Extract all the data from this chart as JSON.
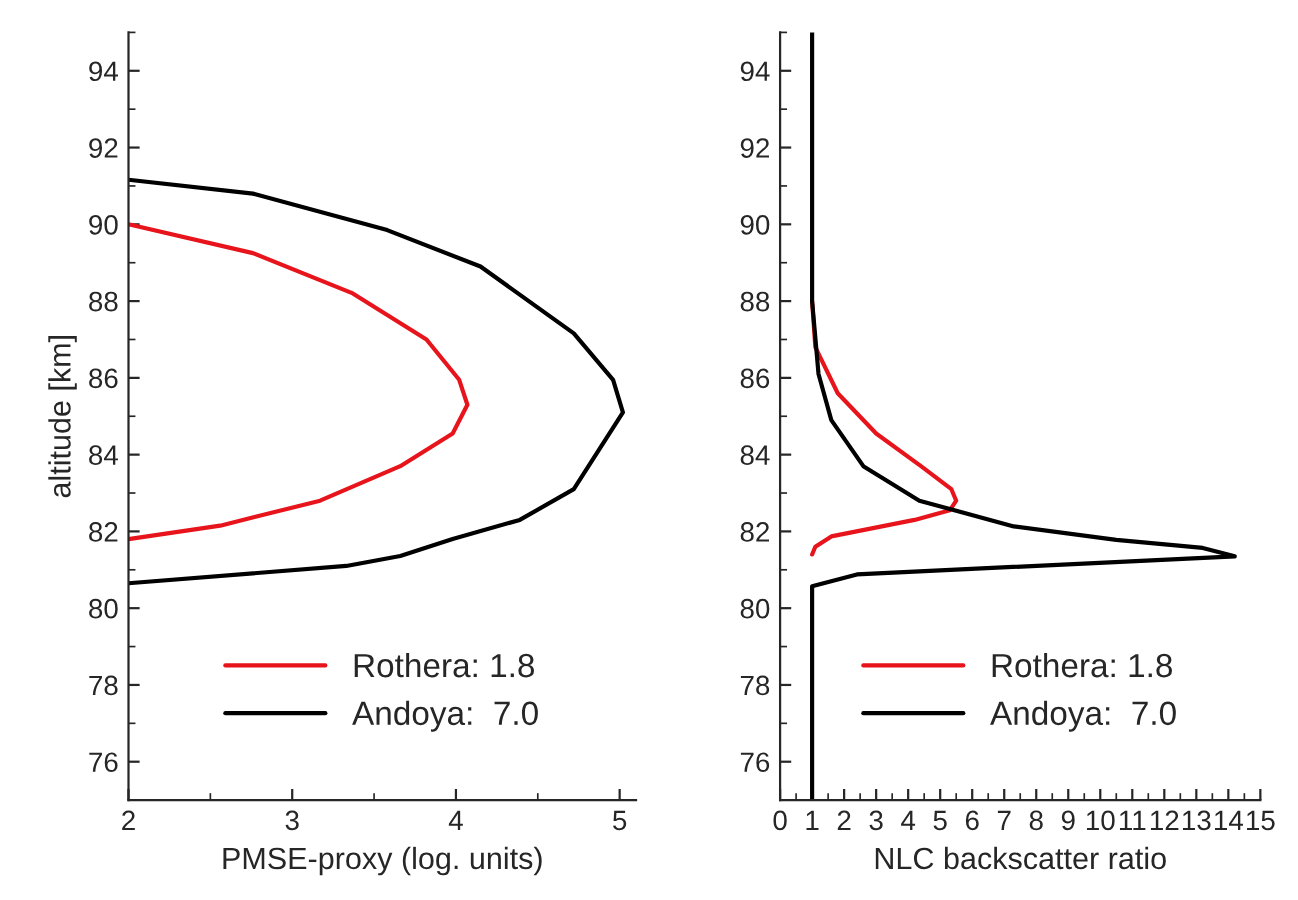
{
  "chart_data": [
    {
      "type": "line",
      "xlabel": "PMSE-proxy (log. units)",
      "ylabel": "altitude [km]",
      "xlim": [
        2,
        5.1
      ],
      "xticks": [
        2,
        3,
        4,
        5
      ],
      "ylim": [
        75,
        95
      ],
      "yticks": [
        76,
        78,
        80,
        82,
        84,
        86,
        88,
        90,
        92,
        94
      ],
      "grid": false,
      "legend": "bottom",
      "series": [
        {
          "name": "Rothera: 1.8",
          "color": "#e8141c",
          "x": [
            2.0,
            2.76,
            3.37,
            3.82,
            4.02,
            4.07,
            3.98,
            3.66,
            3.17,
            2.56,
            2.0
          ],
          "values": [
            90.0,
            89.25,
            88.2,
            87.0,
            85.95,
            85.3,
            84.55,
            83.7,
            82.8,
            82.15,
            81.8
          ]
        },
        {
          "name": "Andoya:  7.0",
          "color": "#000000",
          "x": [
            2.0,
            2.76,
            3.58,
            4.15,
            4.72,
            4.96,
            5.02,
            4.72,
            4.39,
            3.98,
            3.66,
            3.33,
            2.0
          ],
          "values": [
            91.16,
            90.8,
            89.85,
            88.9,
            87.16,
            85.95,
            85.1,
            83.1,
            82.3,
            81.8,
            81.36,
            81.1,
            80.65
          ]
        }
      ]
    },
    {
      "type": "line",
      "xlabel": "NLC backscatter ratio",
      "xlim": [
        0,
        15
      ],
      "xticks": [
        0,
        1,
        2,
        3,
        4,
        5,
        6,
        7,
        8,
        9,
        10,
        11,
        12,
        13,
        14,
        15
      ],
      "ylim": [
        75,
        95
      ],
      "yticks": [
        76,
        78,
        80,
        82,
        84,
        86,
        88,
        90,
        92,
        94
      ],
      "grid": false,
      "legend": "bottom",
      "series": [
        {
          "name": "Rothera: 1.8",
          "color": "#e8141c",
          "x": [
            1.0,
            1.1,
            1.8,
            3.0,
            4.4,
            5.35,
            5.5,
            5.3,
            4.2,
            1.6,
            1.1,
            1.0
          ],
          "values": [
            88.0,
            86.8,
            85.6,
            84.55,
            83.7,
            83.1,
            82.8,
            82.55,
            82.3,
            81.87,
            81.6,
            81.4
          ]
        },
        {
          "name": "Andoya:  7.0",
          "color": "#000000",
          "x": [
            1.0,
            1.0,
            1.2,
            1.6,
            2.6,
            4.35,
            7.3,
            10.5,
            13.2,
            14.2,
            2.4,
            1.0,
            1.0
          ],
          "values": [
            95.0,
            88.0,
            86.1,
            84.9,
            83.7,
            82.8,
            82.13,
            81.78,
            81.57,
            81.35,
            80.88,
            80.57,
            75.0
          ]
        }
      ]
    }
  ]
}
